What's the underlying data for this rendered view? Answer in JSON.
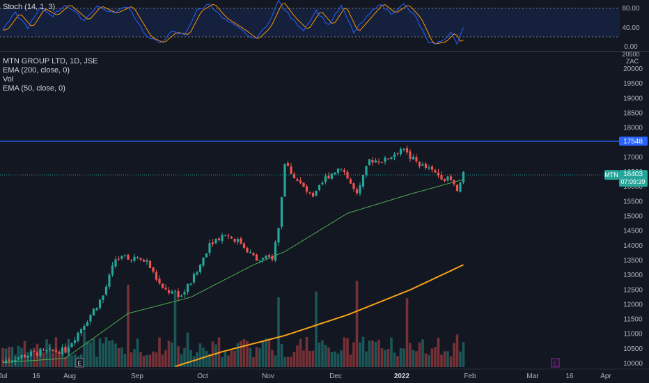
{
  "legends": {
    "stoch": "Stoch (14, 1, 3)",
    "symbol": "MTN GROUP LTD, 1D, JSE",
    "ema200": "EMA (200, close, 0)",
    "vol": "Vol",
    "ema50": "EMA (50, close, 0)"
  },
  "stoch_axis": {
    "ticks": [
      "80.00",
      "40.00",
      "0.00"
    ],
    "values": [
      80,
      40,
      0
    ]
  },
  "price_axis": {
    "currency": "ZAC",
    "top_partial": "20500",
    "ticks": [
      "20000",
      "19500",
      "19000",
      "18500",
      "18000",
      "17500",
      "17000",
      "16500",
      "16000",
      "15500",
      "15000",
      "14500",
      "14000",
      "13500",
      "13000",
      "12500",
      "12000",
      "11500",
      "11000",
      "10500",
      "10000"
    ]
  },
  "badges": {
    "level": "17548",
    "symbol": "MTN",
    "price": "16403",
    "countdown": "07:09:39"
  },
  "x_axis": {
    "labels": [
      "Jul",
      "16",
      "Aug",
      "Sep",
      "Oct",
      "Nov",
      "Dec",
      "2022",
      "Feb",
      "Mar",
      "16",
      "Apr"
    ],
    "event_marker": "E"
  },
  "colors": {
    "background": "#131722",
    "up": "#26a69a",
    "down": "#ef5350",
    "ema200": "#f7a21b",
    "ema50": "#4caf50",
    "stoch_k": "#2962ff",
    "stoch_d": "#ff9800",
    "level_line": "#2962ff",
    "event_future": "#9c27b0"
  },
  "chart_data": [
    {
      "type": "candlestick",
      "title": "MTN GROUP LTD, 1D, JSE",
      "ylim": [
        9900,
        20600
      ],
      "resistance_level": 17548,
      "last_price": 16403,
      "anchors": [
        {
          "d": 0,
          "p": 10080
        },
        {
          "d": 10,
          "p": 10350
        },
        {
          "d": 20,
          "p": 10450
        },
        {
          "d": 27,
          "p": 11500
        },
        {
          "d": 32,
          "p": 12300
        },
        {
          "d": 36,
          "p": 13550
        },
        {
          "d": 41,
          "p": 13600
        },
        {
          "d": 46,
          "p": 13450
        },
        {
          "d": 51,
          "p": 12500
        },
        {
          "d": 57,
          "p": 12300
        },
        {
          "d": 62,
          "p": 13100
        },
        {
          "d": 66,
          "p": 14100
        },
        {
          "d": 71,
          "p": 14400
        },
        {
          "d": 76,
          "p": 14100
        },
        {
          "d": 81,
          "p": 13500
        },
        {
          "d": 86,
          "p": 13600
        },
        {
          "d": 88,
          "p": 14600
        },
        {
          "d": 90,
          "p": 16800
        },
        {
          "d": 94,
          "p": 16200
        },
        {
          "d": 99,
          "p": 15600
        },
        {
          "d": 103,
          "p": 16300
        },
        {
          "d": 108,
          "p": 16700
        },
        {
          "d": 113,
          "p": 15700
        },
        {
          "d": 117,
          "p": 16900
        },
        {
          "d": 122,
          "p": 16900
        },
        {
          "d": 127,
          "p": 17300
        },
        {
          "d": 130,
          "p": 17000
        },
        {
          "d": 134,
          "p": 16700
        },
        {
          "d": 139,
          "p": 16400
        },
        {
          "d": 143,
          "p": 16200
        },
        {
          "d": 145,
          "p": 15850
        },
        {
          "d": 147,
          "p": 16403
        }
      ],
      "ema50_anchors": [
        {
          "d": 0,
          "p": 10030
        },
        {
          "d": 20,
          "p": 10180
        },
        {
          "d": 40,
          "p": 11700
        },
        {
          "d": 60,
          "p": 12250
        },
        {
          "d": 80,
          "p": 13350
        },
        {
          "d": 90,
          "p": 13800
        },
        {
          "d": 110,
          "p": 15100
        },
        {
          "d": 130,
          "p": 15750
        },
        {
          "d": 147,
          "p": 16250
        }
      ],
      "ema200_anchors": [
        {
          "d": 55,
          "p": 9900
        },
        {
          "d": 70,
          "p": 10400
        },
        {
          "d": 90,
          "p": 10950
        },
        {
          "d": 110,
          "p": 11650
        },
        {
          "d": 130,
          "p": 12500
        },
        {
          "d": 147,
          "p": 13350
        }
      ]
    },
    {
      "type": "line",
      "title": "Stoch (14, 1, 3)",
      "ylim": [
        0,
        100
      ],
      "k_anchors": [
        {
          "d": 0,
          "v": 35
        },
        {
          "d": 4,
          "v": 70
        },
        {
          "d": 8,
          "v": 40
        },
        {
          "d": 12,
          "v": 80
        },
        {
          "d": 16,
          "v": 65
        },
        {
          "d": 20,
          "v": 88
        },
        {
          "d": 26,
          "v": 55
        },
        {
          "d": 30,
          "v": 85
        },
        {
          "d": 35,
          "v": 70
        },
        {
          "d": 40,
          "v": 85
        },
        {
          "d": 46,
          "v": 20
        },
        {
          "d": 50,
          "v": 8
        },
        {
          "d": 54,
          "v": 30
        },
        {
          "d": 58,
          "v": 25
        },
        {
          "d": 62,
          "v": 75
        },
        {
          "d": 66,
          "v": 90
        },
        {
          "d": 70,
          "v": 60
        },
        {
          "d": 76,
          "v": 35
        },
        {
          "d": 80,
          "v": 15
        },
        {
          "d": 84,
          "v": 40
        },
        {
          "d": 88,
          "v": 95
        },
        {
          "d": 92,
          "v": 60
        },
        {
          "d": 96,
          "v": 35
        },
        {
          "d": 100,
          "v": 75
        },
        {
          "d": 104,
          "v": 45
        },
        {
          "d": 108,
          "v": 85
        },
        {
          "d": 112,
          "v": 30
        },
        {
          "d": 116,
          "v": 60
        },
        {
          "d": 120,
          "v": 90
        },
        {
          "d": 124,
          "v": 70
        },
        {
          "d": 128,
          "v": 88
        },
        {
          "d": 132,
          "v": 60
        },
        {
          "d": 136,
          "v": 5
        },
        {
          "d": 140,
          "v": 10
        },
        {
          "d": 143,
          "v": 30
        },
        {
          "d": 145,
          "v": 5
        },
        {
          "d": 147,
          "v": 40
        }
      ]
    }
  ]
}
